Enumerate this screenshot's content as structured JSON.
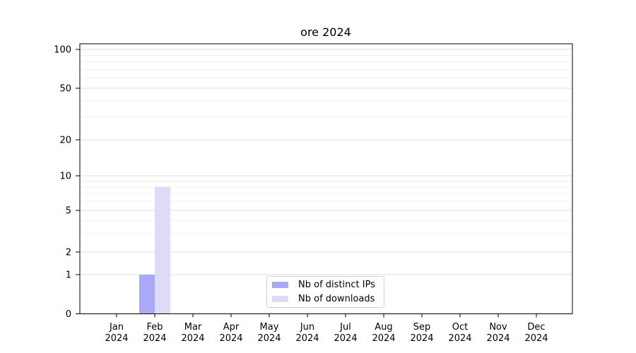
{
  "chart_data": {
    "type": "bar",
    "title": "ore 2024",
    "scale": "symlog",
    "grid": {
      "major": true,
      "minor": true,
      "major_color": "#dcdcdc",
      "minor_color": "#f1f1f1"
    },
    "categories": [
      {
        "month": "Jan",
        "year": "2024"
      },
      {
        "month": "Feb",
        "year": "2024"
      },
      {
        "month": "Mar",
        "year": "2024"
      },
      {
        "month": "Apr",
        "year": "2024"
      },
      {
        "month": "May",
        "year": "2024"
      },
      {
        "month": "Jun",
        "year": "2024"
      },
      {
        "month": "Jul",
        "year": "2024"
      },
      {
        "month": "Aug",
        "year": "2024"
      },
      {
        "month": "Sep",
        "year": "2024"
      },
      {
        "month": "Oct",
        "year": "2024"
      },
      {
        "month": "Nov",
        "year": "2024"
      },
      {
        "month": "Dec",
        "year": "2024"
      }
    ],
    "series": [
      {
        "name": "Nb of distinct IPs",
        "color": "#a9a9f5",
        "values": [
          0,
          1,
          0,
          0,
          0,
          0,
          0,
          0,
          0,
          0,
          0,
          0
        ]
      },
      {
        "name": "Nb of downloads",
        "color": "#dcdcf8",
        "values": [
          0,
          8,
          0,
          0,
          0,
          0,
          0,
          0,
          0,
          0,
          0,
          0
        ]
      }
    ],
    "yticks": [
      0,
      1,
      2,
      5,
      10,
      20,
      50,
      100
    ],
    "minor_ytick_values": [
      3,
      4,
      6,
      7,
      8,
      9,
      30,
      40,
      60,
      70,
      80,
      90
    ],
    "ylim": [
      0,
      110
    ],
    "legend_position": "lower center"
  }
}
